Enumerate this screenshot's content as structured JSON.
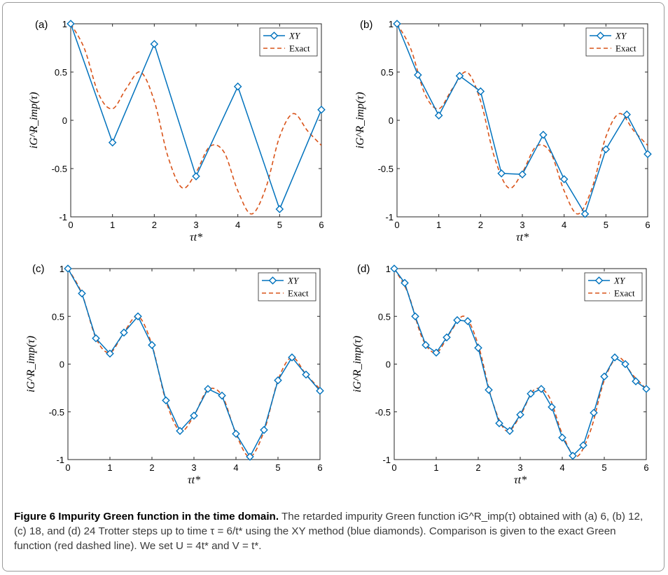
{
  "colors": {
    "xy": "#0072bd",
    "exact": "#d95319",
    "frame": "#9a9a9a"
  },
  "legend": {
    "xy_label": "XY",
    "exact_label": "Exact"
  },
  "axes_text": {
    "ylabel": "iG^R_imp(τ)",
    "xlabel": "τt*"
  },
  "caption": {
    "title": "Figure 6  Impurity Green function in the time domain.",
    "text": "The retarded impurity Green function iG^R_imp(τ) obtained with (a) 6, (b) 12, (c) 18, and (d) 24 Trotter steps up to time τ = 6/t* using the XY method (blue diamonds). Comparison is given to the exact Green function (red dashed line). We set U = 4t* and V = t*."
  },
  "chart_data": [
    {
      "panel": "(a)",
      "type": "line",
      "xlabel": "τt*",
      "ylabel": "iG^R_imp(τ)",
      "xlim": [
        0,
        6
      ],
      "ylim": [
        -1,
        1
      ],
      "xticks": [
        "0",
        "1",
        "2",
        "3",
        "4",
        "5",
        "6"
      ],
      "yticks": [
        "1",
        "0.5",
        "0",
        "-0.5",
        "-1"
      ],
      "legend_position": "top-right",
      "series": [
        {
          "name": "XY",
          "style": "solid-diamond",
          "x": [
            0,
            1,
            2,
            3,
            4,
            5,
            6
          ],
          "y": [
            1.0,
            -0.23,
            0.79,
            -0.58,
            0.35,
            -0.92,
            0.11
          ]
        },
        {
          "name": "Exact",
          "style": "dashed",
          "x": [
            0,
            0.33,
            0.67,
            1.0,
            1.33,
            1.67,
            2.0,
            2.33,
            2.67,
            3.0,
            3.33,
            3.67,
            4.0,
            4.33,
            4.67,
            5.0,
            5.33,
            5.67,
            6.0
          ],
          "y": [
            1.0,
            0.74,
            0.27,
            0.12,
            0.33,
            0.5,
            0.2,
            -0.38,
            -0.7,
            -0.54,
            -0.27,
            -0.33,
            -0.73,
            -0.97,
            -0.7,
            -0.17,
            0.07,
            -0.11,
            -0.26
          ]
        }
      ]
    },
    {
      "panel": "(b)",
      "type": "line",
      "xlabel": "τt*",
      "ylabel": "iG^R_imp(τ)",
      "xlim": [
        0,
        6
      ],
      "ylim": [
        -1,
        1
      ],
      "xticks": [
        "0",
        "1",
        "2",
        "3",
        "4",
        "5",
        "6"
      ],
      "yticks": [
        "1",
        "0.5",
        "0",
        "-0.5",
        "-1"
      ],
      "legend_position": "top-right",
      "series": [
        {
          "name": "XY",
          "style": "solid-diamond",
          "x": [
            0,
            0.5,
            1.0,
            1.5,
            2.0,
            2.5,
            3.0,
            3.5,
            4.0,
            4.5,
            5.0,
            5.5,
            6.0
          ],
          "y": [
            1.0,
            0.47,
            0.05,
            0.46,
            0.3,
            -0.55,
            -0.56,
            -0.15,
            -0.61,
            -0.97,
            -0.3,
            0.06,
            -0.35
          ]
        },
        {
          "name": "Exact",
          "style": "dashed",
          "x": [
            0,
            0.33,
            0.67,
            1.0,
            1.33,
            1.67,
            2.0,
            2.33,
            2.67,
            3.0,
            3.33,
            3.67,
            4.0,
            4.33,
            4.67,
            5.0,
            5.33,
            5.67,
            6.0
          ],
          "y": [
            1.0,
            0.74,
            0.27,
            0.12,
            0.33,
            0.5,
            0.2,
            -0.38,
            -0.7,
            -0.54,
            -0.27,
            -0.33,
            -0.73,
            -0.97,
            -0.7,
            -0.17,
            0.07,
            -0.11,
            -0.26
          ]
        }
      ]
    },
    {
      "panel": "(c)",
      "type": "line",
      "xlabel": "τt*",
      "ylabel": "iG^R_imp(τ)",
      "xlim": [
        0,
        6
      ],
      "ylim": [
        -1,
        1
      ],
      "xticks": [
        "0",
        "1",
        "2",
        "3",
        "4",
        "5",
        "6"
      ],
      "yticks": [
        "1",
        "0.5",
        "0",
        "-0.5",
        "-1"
      ],
      "legend_position": "top-right",
      "series": [
        {
          "name": "XY",
          "style": "solid-diamond",
          "x": [
            0,
            0.333,
            0.667,
            1.0,
            1.333,
            1.667,
            2.0,
            2.333,
            2.667,
            3.0,
            3.333,
            3.667,
            4.0,
            4.333,
            4.667,
            5.0,
            5.333,
            5.667,
            6.0
          ],
          "y": [
            1.0,
            0.74,
            0.27,
            0.11,
            0.33,
            0.5,
            0.2,
            -0.38,
            -0.7,
            -0.54,
            -0.26,
            -0.33,
            -0.73,
            -0.97,
            -0.69,
            -0.17,
            0.07,
            -0.11,
            -0.28
          ]
        },
        {
          "name": "Exact",
          "style": "dashed",
          "x": [
            0,
            0.33,
            0.67,
            1.0,
            1.33,
            1.67,
            2.0,
            2.33,
            2.67,
            3.0,
            3.33,
            3.67,
            4.0,
            4.33,
            4.67,
            5.0,
            5.33,
            5.67,
            6.0
          ],
          "y": [
            1.0,
            0.74,
            0.27,
            0.12,
            0.33,
            0.5,
            0.2,
            -0.38,
            -0.7,
            -0.54,
            -0.27,
            -0.33,
            -0.73,
            -0.97,
            -0.7,
            -0.17,
            0.07,
            -0.11,
            -0.26
          ]
        }
      ]
    },
    {
      "panel": "(d)",
      "type": "line",
      "xlabel": "τt*",
      "ylabel": "iG^R_imp(τ)",
      "xlim": [
        0,
        6
      ],
      "ylim": [
        -1,
        1
      ],
      "xticks": [
        "0",
        "1",
        "2",
        "3",
        "4",
        "5",
        "6"
      ],
      "yticks": [
        "1",
        "0.5",
        "0",
        "-0.5",
        "-1"
      ],
      "legend_position": "top-right",
      "series": [
        {
          "name": "XY",
          "style": "solid-diamond",
          "x": [
            0,
            0.25,
            0.5,
            0.75,
            1.0,
            1.25,
            1.5,
            1.75,
            2.0,
            2.25,
            2.5,
            2.75,
            3.0,
            3.25,
            3.5,
            3.75,
            4.0,
            4.25,
            4.5,
            4.75,
            5.0,
            5.25,
            5.5,
            5.75,
            6.0
          ],
          "y": [
            1.0,
            0.85,
            0.5,
            0.2,
            0.12,
            0.28,
            0.46,
            0.45,
            0.17,
            -0.27,
            -0.62,
            -0.7,
            -0.53,
            -0.31,
            -0.26,
            -0.45,
            -0.77,
            -0.96,
            -0.85,
            -0.51,
            -0.13,
            0.07,
            0.0,
            -0.18,
            -0.26
          ]
        },
        {
          "name": "Exact",
          "style": "dashed",
          "x": [
            0,
            0.33,
            0.67,
            1.0,
            1.33,
            1.67,
            2.0,
            2.33,
            2.67,
            3.0,
            3.33,
            3.67,
            4.0,
            4.33,
            4.67,
            5.0,
            5.33,
            5.67,
            6.0
          ],
          "y": [
            1.0,
            0.74,
            0.27,
            0.12,
            0.33,
            0.5,
            0.2,
            -0.38,
            -0.7,
            -0.54,
            -0.27,
            -0.33,
            -0.73,
            -0.97,
            -0.7,
            -0.17,
            0.07,
            -0.11,
            -0.26
          ]
        }
      ]
    }
  ]
}
